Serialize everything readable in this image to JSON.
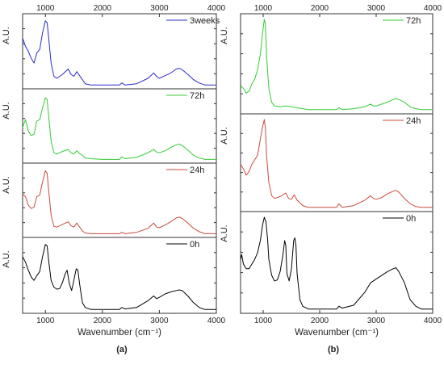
{
  "chart_data": [
    {
      "type": "line",
      "panel_label": "(a)",
      "xlabel": "Wavenumber (cm⁻¹)",
      "ylabel": "A.U.",
      "xlim": [
        600,
        4000
      ],
      "xticks": [
        "1000",
        "2000",
        "3000",
        "4000"
      ],
      "subplots": [
        {
          "series": [
            {
              "name": "3weeks",
              "color": "#2b2bc8",
              "x": [
                600,
                650,
                700,
                750,
                800,
                850,
                900,
                950,
                1000,
                1030,
                1060,
                1100,
                1150,
                1200,
                1300,
                1400,
                1450,
                1500,
                1550,
                1600,
                1650,
                1700,
                1800,
                2000,
                2300,
                2340,
                2400,
                2600,
                2800,
                2900,
                2950,
                3000,
                3100,
                3200,
                3300,
                3350,
                3400,
                3500,
                3600,
                3700,
                3800,
                4000
              ],
              "y": [
                0.72,
                0.6,
                0.52,
                0.42,
                0.35,
                0.5,
                0.55,
                0.8,
                0.98,
                0.95,
                0.7,
                0.35,
                0.15,
                0.12,
                0.18,
                0.26,
                0.18,
                0.15,
                0.22,
                0.16,
                0.1,
                0.04,
                0.02,
                0.02,
                0.02,
                0.05,
                0.02,
                0.04,
                0.12,
                0.2,
                0.15,
                0.12,
                0.16,
                0.2,
                0.26,
                0.27,
                0.25,
                0.18,
                0.1,
                0.05,
                0.02,
                0.02
              ]
            }
          ]
        },
        {
          "series": [
            {
              "name": "72h",
              "color": "#33cc33",
              "x": [
                600,
                650,
                700,
                750,
                800,
                850,
                900,
                950,
                1000,
                1030,
                1060,
                1100,
                1150,
                1200,
                1300,
                1400,
                1450,
                1500,
                1550,
                1600,
                1650,
                1700,
                1800,
                2000,
                2300,
                2340,
                2400,
                2600,
                2800,
                2900,
                2950,
                3000,
                3100,
                3200,
                3300,
                3350,
                3400,
                3500,
                3600,
                3700,
                3800,
                4000
              ],
              "y": [
                0.5,
                0.62,
                0.45,
                0.38,
                0.4,
                0.6,
                0.62,
                0.8,
                0.95,
                0.92,
                0.65,
                0.3,
                0.12,
                0.1,
                0.14,
                0.17,
                0.12,
                0.1,
                0.15,
                0.11,
                0.08,
                0.04,
                0.03,
                0.02,
                0.02,
                0.06,
                0.03,
                0.05,
                0.12,
                0.17,
                0.13,
                0.12,
                0.15,
                0.2,
                0.24,
                0.25,
                0.23,
                0.16,
                0.08,
                0.04,
                0.02,
                0.02
              ]
            }
          ]
        },
        {
          "series": [
            {
              "name": "24h",
              "color": "#c84b3c",
              "x": [
                600,
                650,
                700,
                750,
                800,
                850,
                900,
                950,
                1000,
                1030,
                1060,
                1100,
                1150,
                1200,
                1300,
                1400,
                1450,
                1500,
                1550,
                1600,
                1650,
                1700,
                1800,
                2000,
                2300,
                2340,
                2400,
                2600,
                2800,
                2900,
                2950,
                3000,
                3100,
                3200,
                3300,
                3350,
                3400,
                3500,
                3600,
                3700,
                3800,
                4000
              ],
              "y": [
                0.62,
                0.58,
                0.45,
                0.4,
                0.42,
                0.58,
                0.6,
                0.8,
                0.97,
                0.93,
                0.65,
                0.3,
                0.13,
                0.12,
                0.16,
                0.2,
                0.14,
                0.12,
                0.18,
                0.12,
                0.06,
                0.03,
                0.02,
                0.02,
                0.02,
                0.04,
                0.02,
                0.04,
                0.1,
                0.18,
                0.12,
                0.11,
                0.15,
                0.2,
                0.26,
                0.27,
                0.25,
                0.18,
                0.1,
                0.05,
                0.02,
                0.02
              ]
            }
          ]
        },
        {
          "series": [
            {
              "name": "0h",
              "color": "#000000",
              "x": [
                600,
                650,
                700,
                750,
                800,
                850,
                900,
                950,
                1000,
                1030,
                1060,
                1100,
                1150,
                1200,
                1250,
                1300,
                1350,
                1380,
                1420,
                1460,
                1500,
                1540,
                1570,
                1600,
                1650,
                1700,
                1800,
                2000,
                2300,
                2340,
                2400,
                2600,
                2800,
                2900,
                2950,
                3000,
                3100,
                3200,
                3300,
                3350,
                3400,
                3500,
                3600,
                3700,
                3800,
                4000
              ],
              "y": [
                0.8,
                0.72,
                0.6,
                0.5,
                0.45,
                0.52,
                0.58,
                0.8,
                0.98,
                0.96,
                0.72,
                0.45,
                0.35,
                0.32,
                0.33,
                0.42,
                0.55,
                0.6,
                0.4,
                0.3,
                0.45,
                0.62,
                0.6,
                0.4,
                0.12,
                0.05,
                0.02,
                0.02,
                0.02,
                0.05,
                0.03,
                0.05,
                0.15,
                0.22,
                0.18,
                0.2,
                0.25,
                0.28,
                0.3,
                0.31,
                0.3,
                0.22,
                0.12,
                0.05,
                0.02,
                0.02
              ]
            }
          ]
        }
      ]
    },
    {
      "type": "line",
      "panel_label": "(b)",
      "xlabel": "Wavenumber (cm⁻¹)",
      "ylabel": "A.U.",
      "xlim": [
        600,
        4000
      ],
      "xticks": [
        "1000",
        "2000",
        "3000",
        "4000"
      ],
      "subplots": [
        {
          "series": [
            {
              "name": "72h",
              "color": "#33cc33",
              "x": [
                600,
                650,
                700,
                750,
                800,
                850,
                900,
                950,
                990,
                1020,
                1040,
                1060,
                1100,
                1150,
                1200,
                1300,
                1400,
                1500,
                1600,
                1700,
                1800,
                2000,
                2300,
                2340,
                2400,
                2600,
                2800,
                2900,
                2950,
                3000,
                3100,
                3200,
                3300,
                3350,
                3400,
                3500,
                3600,
                3700,
                3800,
                4000
              ],
              "y": [
                0.28,
                0.25,
                0.2,
                0.22,
                0.3,
                0.35,
                0.45,
                0.62,
                0.85,
                1.0,
                0.95,
                0.6,
                0.25,
                0.1,
                0.06,
                0.05,
                0.06,
                0.05,
                0.04,
                0.03,
                0.02,
                0.02,
                0.02,
                0.04,
                0.02,
                0.03,
                0.05,
                0.08,
                0.06,
                0.06,
                0.08,
                0.1,
                0.13,
                0.14,
                0.13,
                0.1,
                0.05,
                0.03,
                0.02,
                0.02
              ]
            }
          ]
        },
        {
          "series": [
            {
              "name": "24h",
              "color": "#c84b3c",
              "x": [
                600,
                650,
                700,
                750,
                800,
                850,
                900,
                950,
                990,
                1020,
                1040,
                1060,
                1100,
                1150,
                1200,
                1300,
                1400,
                1450,
                1500,
                1550,
                1600,
                1700,
                1800,
                2000,
                2300,
                2340,
                2400,
                2600,
                2800,
                2900,
                2950,
                3000,
                3100,
                3200,
                3300,
                3350,
                3400,
                3500,
                3600,
                3700,
                3800,
                4000
              ],
              "y": [
                0.5,
                0.45,
                0.38,
                0.42,
                0.5,
                0.55,
                0.6,
                0.78,
                0.92,
                1.0,
                0.9,
                0.6,
                0.3,
                0.15,
                0.12,
                0.14,
                0.18,
                0.12,
                0.11,
                0.16,
                0.1,
                0.04,
                0.02,
                0.02,
                0.02,
                0.06,
                0.02,
                0.04,
                0.1,
                0.15,
                0.12,
                0.11,
                0.13,
                0.17,
                0.2,
                0.21,
                0.19,
                0.12,
                0.06,
                0.03,
                0.02,
                0.02
              ]
            }
          ]
        },
        {
          "series": [
            {
              "name": "0h",
              "color": "#000000",
              "x": [
                600,
                620,
                650,
                700,
                750,
                800,
                850,
                900,
                950,
                990,
                1020,
                1050,
                1080,
                1100,
                1150,
                1200,
                1250,
                1300,
                1350,
                1380,
                1400,
                1420,
                1460,
                1500,
                1540,
                1560,
                1580,
                1600,
                1650,
                1700,
                1800,
                2000,
                2300,
                2340,
                2400,
                2600,
                2800,
                2900,
                2950,
                3000,
                3100,
                3200,
                3300,
                3350,
                3400,
                3500,
                3600,
                3700,
                3800,
                4000
              ],
              "y": [
                0.55,
                0.6,
                0.5,
                0.45,
                0.45,
                0.5,
                0.55,
                0.62,
                0.75,
                0.92,
                1.0,
                0.95,
                0.75,
                0.55,
                0.38,
                0.32,
                0.33,
                0.42,
                0.6,
                0.75,
                0.7,
                0.4,
                0.32,
                0.45,
                0.75,
                0.78,
                0.7,
                0.4,
                0.12,
                0.05,
                0.02,
                0.02,
                0.02,
                0.05,
                0.03,
                0.06,
                0.2,
                0.3,
                0.32,
                0.34,
                0.38,
                0.42,
                0.45,
                0.46,
                0.42,
                0.3,
                0.12,
                0.05,
                0.02,
                0.02
              ]
            }
          ]
        }
      ]
    }
  ]
}
